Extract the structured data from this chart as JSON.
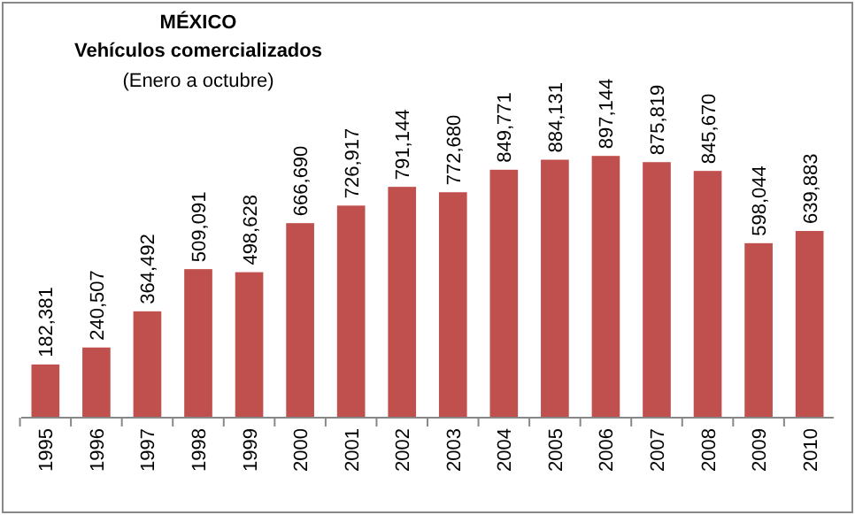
{
  "chart_data": {
    "type": "bar",
    "title": "MÉXICO\nVehículos comercializados",
    "subtitle": "(Enero a octubre)",
    "categories": [
      "1995",
      "1996",
      "1997",
      "1998",
      "1999",
      "2000",
      "2001",
      "2002",
      "2003",
      "2004",
      "2005",
      "2006",
      "2007",
      "2008",
      "2009",
      "2010"
    ],
    "values": [
      182381,
      240507,
      364492,
      509091,
      498628,
      666690,
      726917,
      791144,
      772680,
      849771,
      884131,
      897144,
      875819,
      845670,
      598044,
      639883
    ],
    "value_labels": [
      "182,381",
      "240,507",
      "364,492",
      "509,091",
      "498,628",
      "666,690",
      "726,917",
      "791,144",
      "772,680",
      "849,771",
      "884,131",
      "897,144",
      "875,819",
      "845,670",
      "598,044",
      "639,883"
    ],
    "color": "#c0504d"
  }
}
